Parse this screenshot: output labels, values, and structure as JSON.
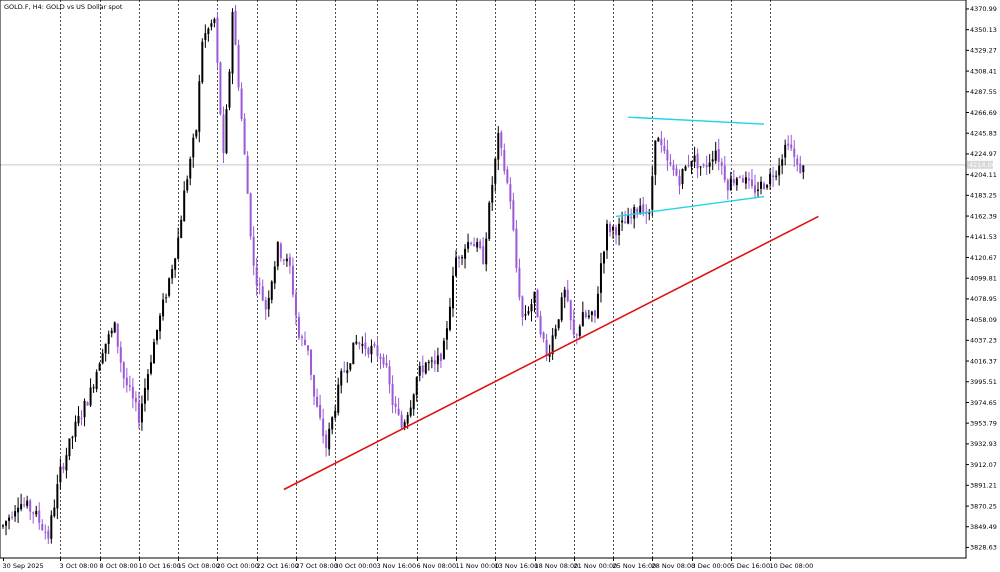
{
  "window": {
    "title": "GOLD.F, H4:  GOLD vs US Dollar spot"
  },
  "colors": {
    "background": "#ffffff",
    "grid": "#000000",
    "bull_candle": "#000000",
    "bear_candle": "#9b59d6",
    "trendline": "#e01010",
    "channel": "#22d3e6",
    "current_price_line": "#c8c8c8"
  },
  "chart_data": {
    "type": "candlestick",
    "symbol": "GOLD.F",
    "timeframe": "H4",
    "title": "GOLD.F, H4:  GOLD vs US Dollar spot",
    "grid": "vertical dashed",
    "ylim": [
      3818,
      4380
    ],
    "current_price": 4214,
    "current_price_label": "4214.00",
    "y_tick_labels": [
      "4370.99",
      "4350.13",
      "4329.27",
      "4308.41",
      "4287.55",
      "4266.69",
      "4245.83",
      "4224.97",
      "4204.11",
      "4183.25",
      "4162.39",
      "4141.53",
      "4120.67",
      "4099.81",
      "4078.95",
      "4058.09",
      "4037.23",
      "4016.37",
      "3995.51",
      "3974.65",
      "3953.79",
      "3932.93",
      "3912.07",
      "3891.21",
      "3870.25",
      "3849.49",
      "3828.63"
    ],
    "y_tick_values": [
      4370.99,
      4350.13,
      4329.27,
      4308.41,
      4287.55,
      4266.69,
      4245.83,
      4224.97,
      4204.11,
      4183.25,
      4162.39,
      4141.53,
      4120.67,
      4099.81,
      4078.95,
      4058.09,
      4037.23,
      4016.37,
      3995.51,
      3974.65,
      3953.79,
      3932.93,
      3912.07,
      3891.21,
      3870.25,
      3849.49,
      3828.63
    ],
    "x_tick_labels": [
      "30 Sep 2025",
      "3 Oct 08:00",
      "8 Oct 08:00",
      "10 Oct 16:00",
      "15 Oct 08:00",
      "20 Oct 00:00",
      "22 Oct 16:00",
      "27 Oct 08:00",
      "30 Oct 00:00",
      "3 Nov 16:00",
      "6 Nov 08:00",
      "11 Nov 00:00",
      "13 Nov 16:00",
      "18 Nov 08:00",
      "21 Nov 00:00",
      "25 Nov 16:00",
      "28 Nov 08:00",
      "3 Dec 00:00",
      "5 Dec 16:00",
      "10 Dec 08:00"
    ],
    "x_tick_index": [
      0,
      19,
      32,
      45,
      58,
      71,
      84,
      97,
      110,
      124,
      137,
      150,
      163,
      176,
      189,
      202,
      215,
      228,
      241,
      254
    ],
    "candles_count": 266,
    "price_path": {
      "index": [
        0,
        5,
        10,
        15,
        19,
        24,
        29,
        33,
        37,
        40,
        45,
        50,
        54,
        58,
        60,
        62,
        64,
        66,
        70,
        73,
        75,
        76,
        79,
        83,
        87,
        91,
        95,
        98,
        101,
        103,
        107,
        112,
        117,
        121,
        126,
        129,
        132,
        135,
        137,
        140,
        143,
        146,
        150,
        155,
        159,
        162,
        164,
        168,
        170,
        172,
        176,
        180,
        186,
        189,
        192,
        196,
        198,
        200,
        204,
        208,
        211,
        214,
        216,
        220,
        224,
        228,
        232,
        236,
        240,
        244,
        248,
        252,
        256,
        260,
        263
      ],
      "close": [
        3850,
        3875,
        3865,
        3840,
        3905,
        3950,
        3985,
        4030,
        4050,
        4000,
        3960,
        4035,
        4085,
        4140,
        4185,
        4220,
        4250,
        4340,
        4360,
        4220,
        4310,
        4370,
        4260,
        4110,
        4070,
        4130,
        4110,
        4040,
        4030,
        3980,
        3930,
        4000,
        4035,
        4030,
        4020,
        3975,
        3950,
        3975,
        4000,
        4015,
        4010,
        4030,
        4120,
        4140,
        4120,
        4195,
        4240,
        4180,
        4110,
        4060,
        4080,
        4020,
        4085,
        4040,
        4060,
        4060,
        4115,
        4150,
        4150,
        4160,
        4175,
        4162,
        4245,
        4215,
        4200,
        4222,
        4210,
        4230,
        4195,
        4205,
        4188,
        4195,
        4210,
        4240,
        4210
      ]
    },
    "trendline": {
      "from": [
        93,
        3887
      ],
      "to": [
        270,
        4162
      ]
    },
    "channel_upper": {
      "from": [
        207,
        4262
      ],
      "to": [
        252,
        4255
      ]
    },
    "channel_lower": {
      "from": [
        203,
        4162
      ],
      "to": [
        252,
        4182
      ]
    }
  }
}
